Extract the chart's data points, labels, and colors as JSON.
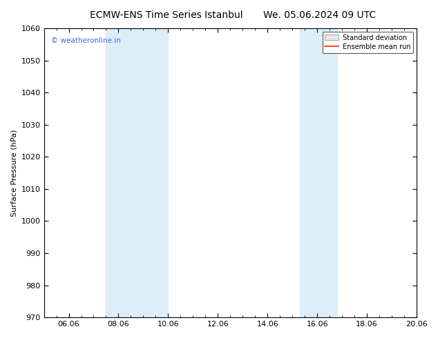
{
  "title": "ECMW-ENS Time Series Istanbul",
  "title2": "We. 05.06.2024 09 UTC",
  "ylabel": "Surface Pressure (hPa)",
  "ylim": [
    970,
    1060
  ],
  "yticks": [
    970,
    980,
    990,
    1000,
    1010,
    1020,
    1030,
    1040,
    1050,
    1060
  ],
  "xlim": [
    0,
    15
  ],
  "xtick_labels": [
    "06.06",
    "08.06",
    "10.06",
    "12.06",
    "14.06",
    "16.06",
    "18.06",
    "20.06"
  ],
  "xtick_positions": [
    1,
    3,
    5,
    7,
    9,
    11,
    13,
    15
  ],
  "shaded_bands": [
    {
      "x_start": 2.5,
      "x_end": 3.5
    },
    {
      "x_start": 3.5,
      "x_end": 5.0
    },
    {
      "x_start": 10.5,
      "x_end": 11.0
    },
    {
      "x_start": 11.0,
      "x_end": 12.0
    }
  ],
  "shaded_color": "#ddeef8",
  "watermark_text": "© weatheronline.in",
  "watermark_color": "#4169e1",
  "legend_std_dev_color": "#e8e8e8",
  "legend_mean_color": "#ff2200",
  "background_color": "#ffffff",
  "title_fontsize": 10,
  "axis_label_fontsize": 8,
  "tick_fontsize": 8
}
